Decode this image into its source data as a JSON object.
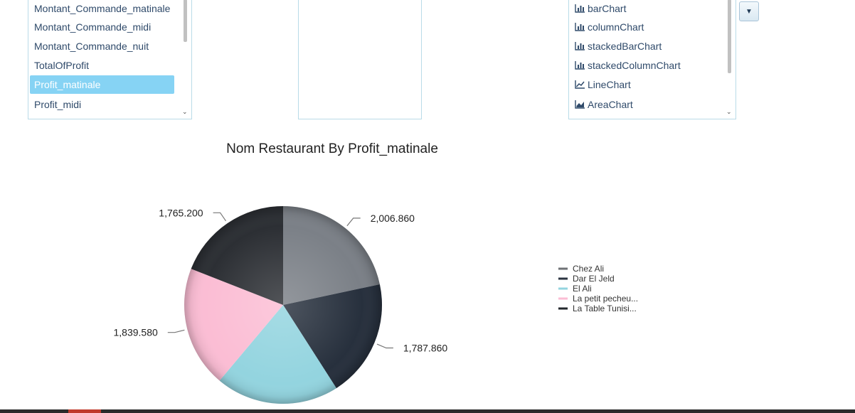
{
  "fields_list": {
    "items": [
      {
        "label": "Montant_Commande_matinale",
        "selected": false
      },
      {
        "label": "Montant_Commande_midi",
        "selected": false
      },
      {
        "label": "Montant_Commande_nuit",
        "selected": false
      },
      {
        "label": "TotalOfProfit",
        "selected": false
      },
      {
        "label": "Profit_matinale",
        "selected": true
      },
      {
        "label": "Profit_midi",
        "selected": false
      }
    ]
  },
  "chart_types_list": {
    "items": [
      {
        "label": "barChart",
        "icon": "bar-chart-icon"
      },
      {
        "label": "columnChart",
        "icon": "bar-chart-icon"
      },
      {
        "label": "stackedBarChart",
        "icon": "bar-chart-icon"
      },
      {
        "label": "stackedColumnChart",
        "icon": "bar-chart-icon"
      },
      {
        "label": "LineChart",
        "icon": "line-chart-icon"
      },
      {
        "label": "AreaChart",
        "icon": "area-chart-icon"
      }
    ]
  },
  "dropdown": {
    "glyph": "▼"
  },
  "chart_data": {
    "type": "pie",
    "title": "Nom Restaurant By Profit_matinale",
    "slices": [
      {
        "name": "Chez Ali",
        "value": 2006.86,
        "label": "2,006.860",
        "color": "#7b8087"
      },
      {
        "name": "Dar El Jeld",
        "value": 1787.86,
        "label": "1,787.860",
        "color": "#27303d"
      },
      {
        "name": "El Ali",
        "value": 1870.0,
        "label": "",
        "color": "#93d4df"
      },
      {
        "name": "La petit pecheu...",
        "value": 1839.58,
        "label": "1,839.580",
        "color": "#fbbdd4"
      },
      {
        "name": "La Table Tunisi...",
        "value": 1765.2,
        "label": "1,765.200",
        "color": "#2c2f34"
      }
    ],
    "legend": {
      "position": "right",
      "items": [
        {
          "label": "Chez Ali",
          "color": "#6f7276"
        },
        {
          "label": "Dar El Jeld",
          "color": "#2b3340"
        },
        {
          "label": "El Ali",
          "color": "#93d4df"
        },
        {
          "label": "La petit pecheu...",
          "color": "#fbbdd4"
        },
        {
          "label": "La Table Tunisi...",
          "color": "#23272c"
        }
      ]
    }
  }
}
